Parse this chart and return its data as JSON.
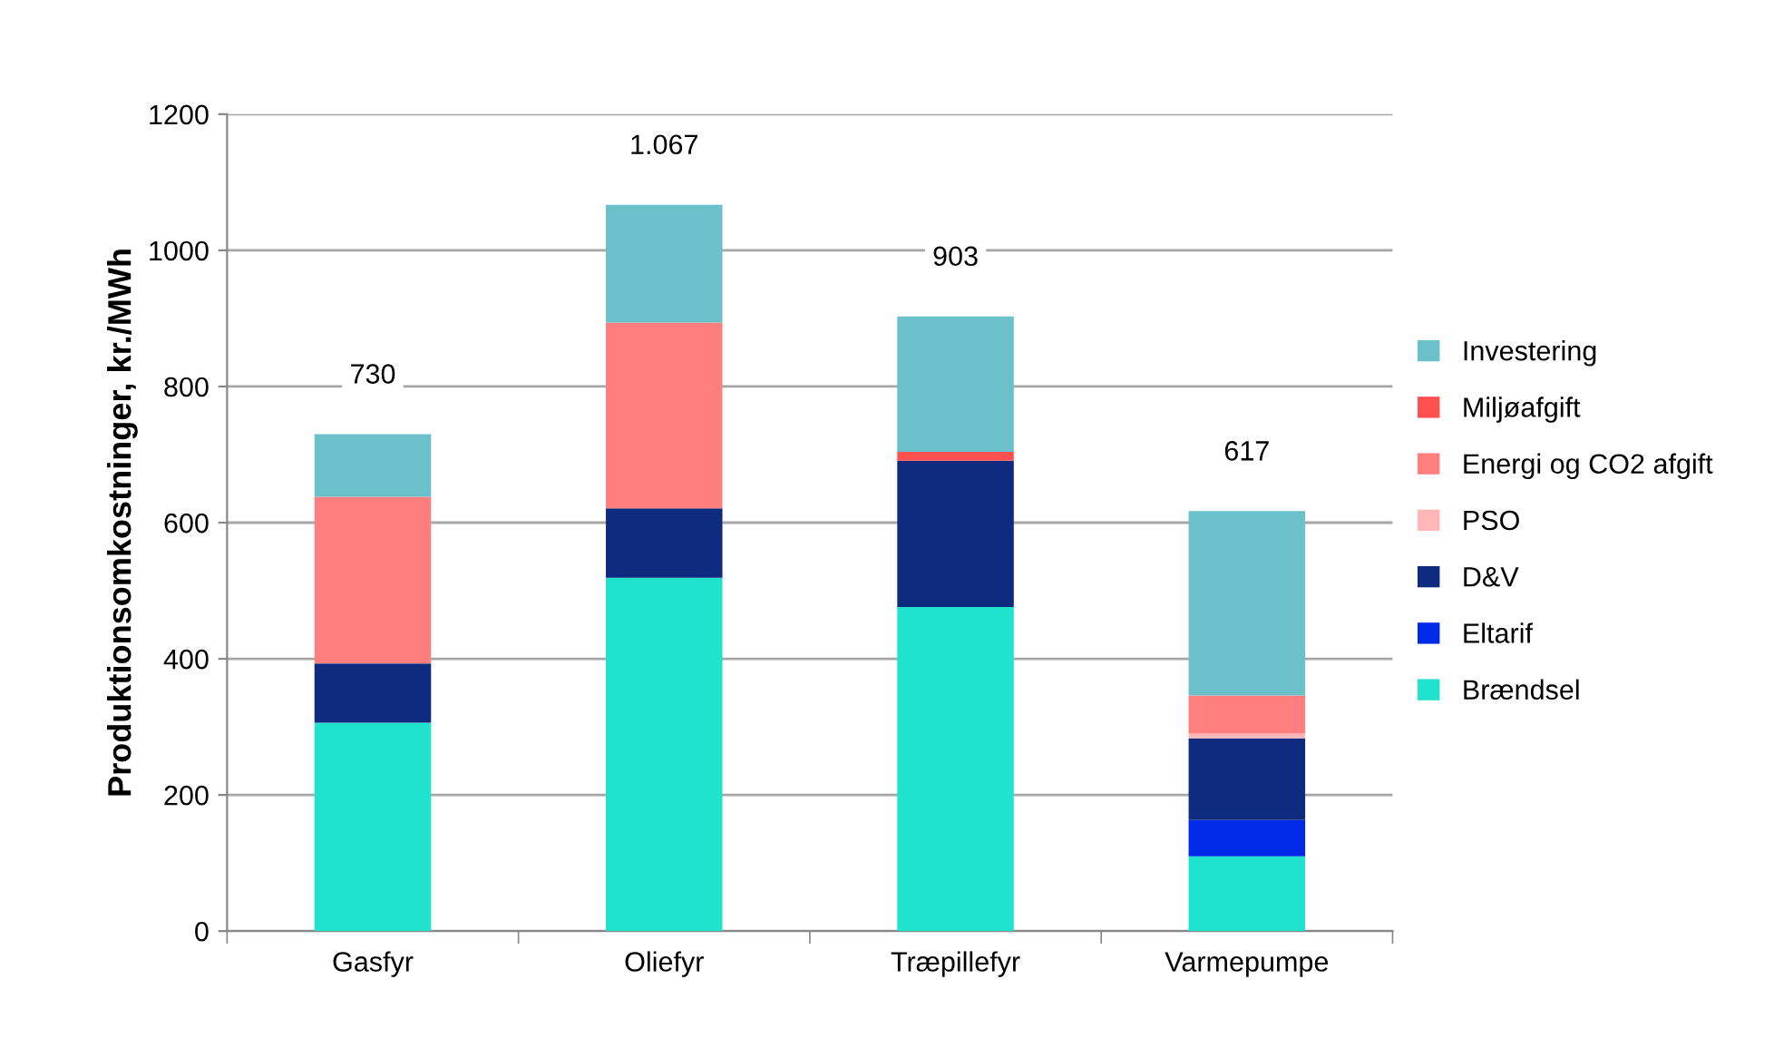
{
  "chart_data": {
    "type": "bar",
    "stacked": true,
    "ylabel": "Produktionsomkostninger, kr./MWh",
    "categories": [
      "Gasfyr",
      "Oliefyr",
      "Træpillefyr",
      "Varmepumpe"
    ],
    "series": [
      {
        "name": "Brændsel",
        "color": "#1fe3cd",
        "values": [
          306,
          519,
          476,
          110
        ]
      },
      {
        "name": "Eltarif",
        "color": "#0029e8",
        "values": [
          0,
          0,
          0,
          53
        ]
      },
      {
        "name": "D&V",
        "color": "#0f2b80",
        "values": [
          87,
          102,
          215,
          120
        ]
      },
      {
        "name": "PSO",
        "color": "#ffb6b6",
        "values": [
          0,
          0,
          0,
          7
        ]
      },
      {
        "name": "Energi og CO2 afgift",
        "color": "#ff7f7e",
        "values": [
          245,
          273,
          0,
          56
        ]
      },
      {
        "name": "Miljøafgift",
        "color": "#ff5050",
        "values": [
          0,
          0,
          13,
          0
        ]
      },
      {
        "name": "Investering",
        "color": "#6ac1c9",
        "values": [
          92,
          173,
          199,
          271
        ]
      }
    ],
    "totals": [
      "730",
      "1.067",
      "903",
      "617"
    ],
    "ylim": [
      0,
      1200
    ],
    "yticks": [
      0,
      200,
      400,
      600,
      800,
      1000,
      1200
    ],
    "grid": "y",
    "legend": "right"
  }
}
